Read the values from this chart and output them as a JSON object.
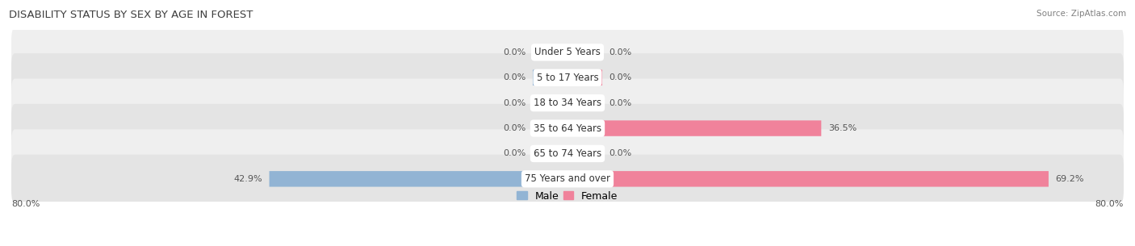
{
  "title": "DISABILITY STATUS BY SEX BY AGE IN FOREST",
  "source": "Source: ZipAtlas.com",
  "categories": [
    "Under 5 Years",
    "5 to 17 Years",
    "18 to 34 Years",
    "35 to 64 Years",
    "65 to 74 Years",
    "75 Years and over"
  ],
  "male_values": [
    0.0,
    0.0,
    0.0,
    0.0,
    0.0,
    42.9
  ],
  "female_values": [
    0.0,
    0.0,
    0.0,
    36.5,
    0.0,
    69.2
  ],
  "male_color": "#92b4d4",
  "female_color": "#f0829b",
  "row_bg_even": "#efefef",
  "row_bg_odd": "#e4e4e4",
  "x_max": 80.0,
  "x_min": -80.0,
  "min_bar": 5.0,
  "label_color": "#555555",
  "title_color": "#404040",
  "source_color": "#808080"
}
